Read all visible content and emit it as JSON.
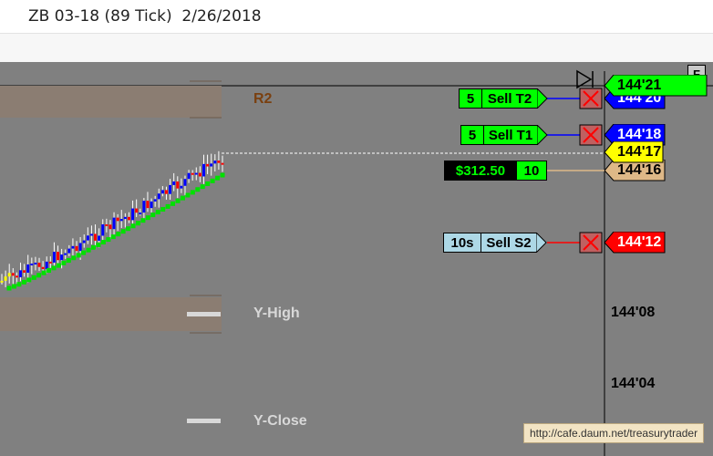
{
  "window": {
    "title": "ZB 03-18 (89 Tick)  2/26/2018"
  },
  "chart": {
    "corner_button": "F",
    "levels": {
      "r2": "R2",
      "y_high": "Y-High",
      "y_close": "Y-Close"
    },
    "axis_prices": [
      "144'08",
      "144'04"
    ],
    "orders": [
      {
        "qty": "5",
        "label": "Sell T2",
        "price": "144'20",
        "color": "#00ff00",
        "line_color": "#0000ff",
        "tag_bg": "#0000ff",
        "tag_fg": "#ffffff"
      },
      {
        "qty": "5",
        "label": "Sell T1",
        "price": "144'18",
        "color": "#00ff00",
        "line_color": "#0000ff",
        "tag_bg": "#0000ff",
        "tag_fg": "#ffffff"
      },
      {
        "qty": "10s",
        "label": "Sell S2",
        "price": "144'12",
        "color": "#add8e6",
        "line_color": "#ff0000",
        "tag_bg": "#ff0000",
        "tag_fg": "#ffffff"
      }
    ],
    "position": {
      "pnl": "$312.50",
      "qty": "10",
      "price": "144'16",
      "tag_bg": "#deb887"
    },
    "last_price": {
      "price": "144'17",
      "bg": "#ffff00"
    },
    "ask_price": {
      "price": "144'21",
      "bg": "#00ff00"
    },
    "watermark": "http://cafe.daum.net/treasurytrader"
  }
}
